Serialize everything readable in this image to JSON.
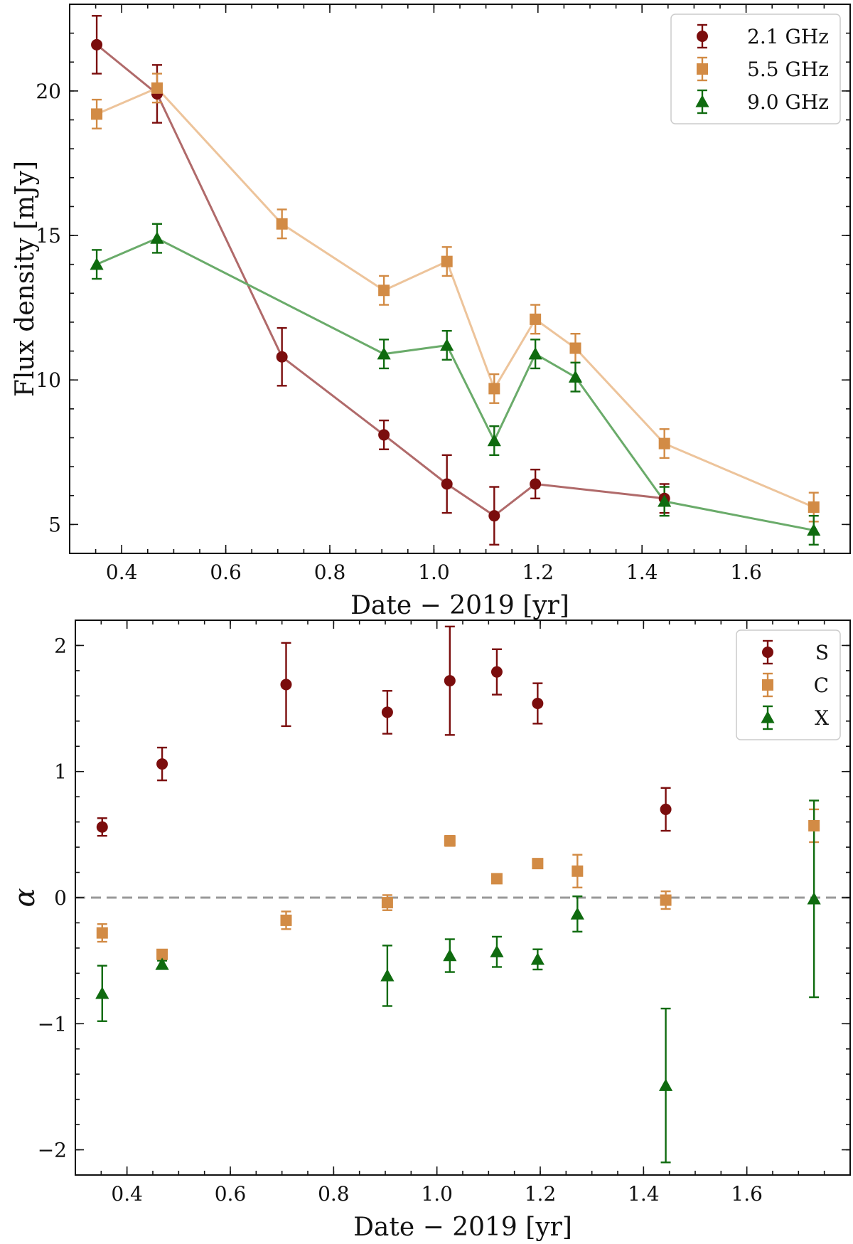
{
  "chart_data": [
    {
      "type": "scatter",
      "title": "",
      "xlabel": "Date − 2019 [yr]",
      "ylabel": "Flux density [mJy]",
      "xlim": [
        0.3,
        1.8
      ],
      "ylim": [
        4.0,
        23.0
      ],
      "xticks": [
        0.4,
        0.6,
        0.8,
        1.0,
        1.2,
        1.4,
        1.6
      ],
      "xtick_labels": [
        "0.4",
        "0.6",
        "0.8",
        "1.0",
        "1.2",
        "1.4",
        "1.6"
      ],
      "yticks": [
        5,
        10,
        15,
        20
      ],
      "ytick_labels": [
        "5",
        "10",
        "15",
        "20"
      ],
      "legend_position": "top-right",
      "connected": true,
      "series": [
        {
          "name": "2.1 GHz",
          "marker": "circle",
          "color": "#7b0d0d",
          "line_color": "#b06a6a",
          "x": [
            0.352,
            0.468,
            0.708,
            0.904,
            1.025,
            1.116,
            1.195,
            1.443
          ],
          "y": [
            21.6,
            19.9,
            10.8,
            8.1,
            6.4,
            5.3,
            6.4,
            5.9
          ],
          "err": [
            1.0,
            1.0,
            1.0,
            0.5,
            1.0,
            1.0,
            0.5,
            0.5
          ]
        },
        {
          "name": "5.5 GHz",
          "marker": "square",
          "color": "#d28b45",
          "line_color": "#edc49b",
          "x": [
            0.352,
            0.468,
            0.708,
            0.904,
            1.025,
            1.116,
            1.195,
            1.272,
            1.443,
            1.73
          ],
          "y": [
            19.2,
            20.1,
            15.4,
            13.1,
            14.1,
            9.7,
            12.1,
            11.1,
            7.8,
            5.6
          ],
          "err": [
            0.5,
            0.5,
            0.5,
            0.5,
            0.5,
            0.5,
            0.5,
            0.5,
            0.5,
            0.5
          ]
        },
        {
          "name": "9.0 GHz",
          "marker": "triangle",
          "color": "#0f6b0f",
          "line_color": "#6aab6a",
          "x": [
            0.352,
            0.468,
            0.904,
            1.025,
            1.116,
            1.195,
            1.272,
            1.443,
            1.73
          ],
          "y": [
            14.0,
            14.9,
            10.9,
            11.2,
            7.9,
            10.9,
            10.1,
            5.8,
            4.8
          ],
          "err": [
            0.5,
            0.5,
            0.5,
            0.5,
            0.5,
            0.5,
            0.5,
            0.5,
            0.5
          ]
        }
      ]
    },
    {
      "type": "scatter",
      "title": "",
      "xlabel": "Date − 2019 [yr]",
      "ylabel": "α",
      "xlim": [
        0.3,
        1.8
      ],
      "ylim": [
        -2.2,
        2.2
      ],
      "xticks": [
        0.4,
        0.6,
        0.8,
        1.0,
        1.2,
        1.4,
        1.6
      ],
      "xtick_labels": [
        "0.4",
        "0.6",
        "0.8",
        "1.0",
        "1.2",
        "1.4",
        "1.6"
      ],
      "yticks": [
        -2,
        -1,
        0,
        1,
        2
      ],
      "ytick_labels": [
        "−2",
        "−1",
        "0",
        "1",
        "2"
      ],
      "legend_position": "top-right",
      "connected": false,
      "reference_line": {
        "y": 0,
        "style": "dashed",
        "color": "#999999"
      },
      "series": [
        {
          "name": "S",
          "marker": "circle",
          "color": "#7b0d0d",
          "x": [
            0.352,
            0.468,
            0.708,
            0.904,
            1.025,
            1.116,
            1.195,
            1.443
          ],
          "y": [
            0.56,
            1.06,
            1.69,
            1.47,
            1.72,
            1.79,
            1.54,
            0.7
          ],
          "err": [
            0.07,
            0.13,
            0.33,
            0.17,
            0.43,
            0.18,
            0.16,
            0.17
          ]
        },
        {
          "name": "C",
          "marker": "square",
          "color": "#d28b45",
          "x": [
            0.352,
            0.468,
            0.708,
            0.904,
            1.025,
            1.116,
            1.195,
            1.272,
            1.443,
            1.73
          ],
          "y": [
            -0.28,
            -0.45,
            -0.18,
            -0.04,
            0.45,
            0.15,
            0.27,
            0.21,
            -0.02,
            0.57
          ],
          "err": [
            0.07,
            0.03,
            0.07,
            0.06,
            0.04,
            0.02,
            0.02,
            0.13,
            0.07,
            0.13
          ]
        },
        {
          "name": "X",
          "marker": "triangle",
          "color": "#0f6b0f",
          "x": [
            0.352,
            0.468,
            0.904,
            1.025,
            1.116,
            1.195,
            1.272,
            1.443,
            1.73
          ],
          "y": [
            -0.76,
            -0.53,
            -0.62,
            -0.46,
            -0.43,
            -0.49,
            -0.13,
            -1.49,
            -0.01
          ],
          "err": [
            0.22,
            0.03,
            0.24,
            0.13,
            0.12,
            0.08,
            0.14,
            0.61,
            0.78
          ]
        }
      ]
    }
  ]
}
